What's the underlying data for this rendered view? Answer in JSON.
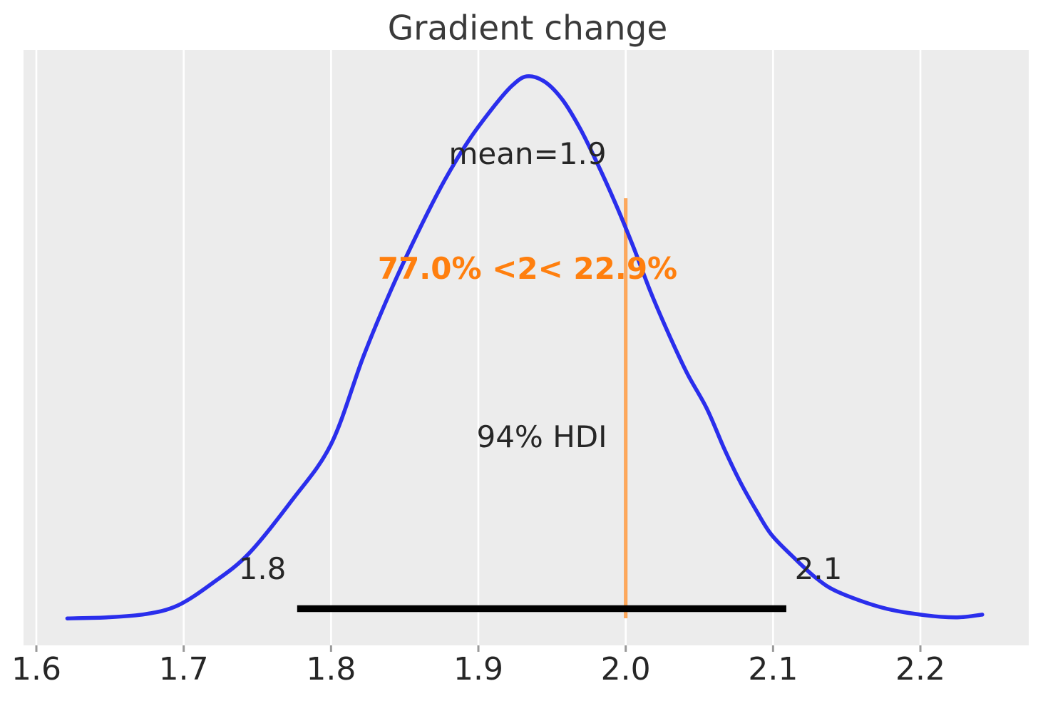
{
  "title": "Gradient change",
  "colors": {
    "curve": "#2a2eec",
    "reference": "#ff7f0e",
    "reference_line_opacity": 0.68,
    "hdi_bar": "#000000",
    "plot_bg": "#ececec",
    "grid": "#ffffff",
    "tick_mark": "#999999",
    "text": "#262626",
    "title_text": "#3a3a3a"
  },
  "chart_data": {
    "type": "line",
    "subtype": "posterior-kde",
    "title": "Gradient change",
    "xlabel": "",
    "ylabel": "",
    "legend": "none",
    "grid": "vertical-white-on-gray",
    "x_ticks": [
      "1.6",
      "1.7",
      "1.8",
      "1.9",
      "2.0",
      "2.1",
      "2.2"
    ],
    "x_tick_values": [
      1.6,
      1.7,
      1.8,
      1.9,
      2.0,
      2.1,
      2.2
    ],
    "xlim": [
      1.591,
      2.273
    ],
    "mean": 1.9,
    "mean_label": "mean=1.9",
    "hdi_probability_label": "94% HDI",
    "hdi_interval": [
      1.777,
      2.109
    ],
    "hdi_lower_label": "1.8",
    "hdi_upper_label": "2.1",
    "reference_value": 2,
    "reference_label": "77.0% <2< 22.9%",
    "curve_points": [
      [
        1.621,
        0.001
      ],
      [
        1.648,
        0.003
      ],
      [
        1.674,
        0.009
      ],
      [
        1.696,
        0.025
      ],
      [
        1.72,
        0.067
      ],
      [
        1.744,
        0.12
      ],
      [
        1.773,
        0.217
      ],
      [
        1.8,
        0.322
      ],
      [
        1.822,
        0.484
      ],
      [
        1.841,
        0.608
      ],
      [
        1.86,
        0.718
      ],
      [
        1.877,
        0.808
      ],
      [
        1.894,
        0.884
      ],
      [
        1.911,
        0.946
      ],
      [
        1.923,
        0.983
      ],
      [
        1.933,
        1.0
      ],
      [
        1.945,
        0.99
      ],
      [
        1.957,
        0.957
      ],
      [
        1.969,
        0.904
      ],
      [
        1.981,
        0.838
      ],
      [
        1.993,
        0.766
      ],
      [
        2.005,
        0.687
      ],
      [
        2.017,
        0.602
      ],
      [
        2.03,
        0.52
      ],
      [
        2.042,
        0.451
      ],
      [
        2.055,
        0.388
      ],
      [
        2.067,
        0.313
      ],
      [
        2.078,
        0.251
      ],
      [
        2.089,
        0.198
      ],
      [
        2.099,
        0.155
      ],
      [
        2.113,
        0.116
      ],
      [
        2.129,
        0.076
      ],
      [
        2.144,
        0.05
      ],
      [
        2.174,
        0.021
      ],
      [
        2.203,
        0.007
      ],
      [
        2.225,
        0.003
      ],
      [
        2.242,
        0.008
      ]
    ]
  }
}
